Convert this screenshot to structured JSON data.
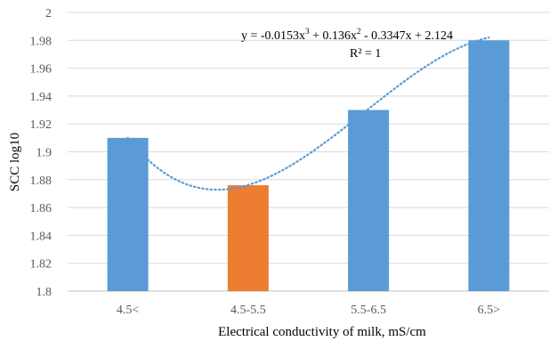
{
  "chart_data": {
    "type": "bar",
    "categories": [
      "4.5<",
      "4.5-5.5",
      "5.5-6.5",
      "6.5>"
    ],
    "values": [
      1.91,
      1.876,
      1.93,
      1.98
    ],
    "bar_colors": [
      "#5b9bd5",
      "#ed7d31",
      "#5b9bd5",
      "#5b9bd5"
    ],
    "title": "",
    "xlabel": "Electrical  conductivity of milk,  mS/cm",
    "ylabel": "SCC log10",
    "ylim": [
      1.8,
      2.0
    ],
    "yticks": [
      "1.8",
      "1.82",
      "1.84",
      "1.86",
      "1.88",
      "1.9",
      "1.92",
      "1.94",
      "1.96",
      "1.98",
      "2"
    ],
    "grid": true,
    "trendline": {
      "type": "polynomial",
      "order": 3,
      "coefficients": [
        -0.0153,
        0.136,
        -0.3347,
        2.124
      ],
      "color": "#5b9bd5",
      "equation_parts": [
        "y = -0.0153x",
        "3",
        " + 0.136x",
        "2",
        " - 0.3347x + 2.124"
      ],
      "r_squared_label": "R² = 1"
    }
  }
}
